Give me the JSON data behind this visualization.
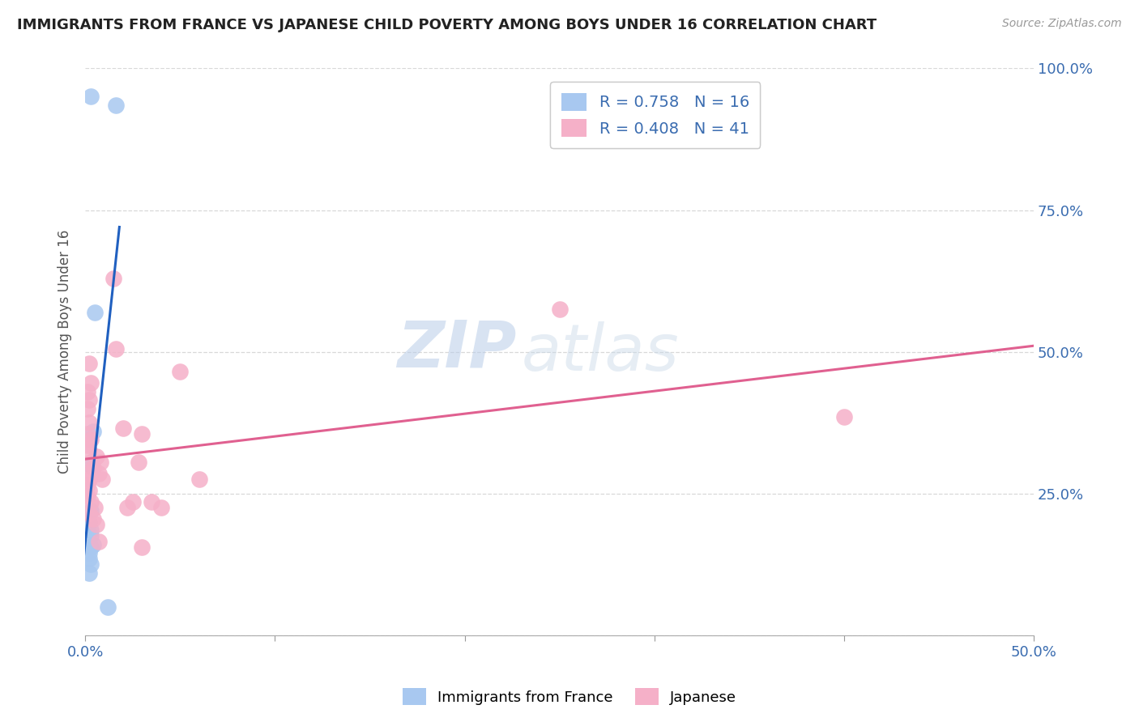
{
  "title": "IMMIGRANTS FROM FRANCE VS JAPANESE CHILD POVERTY AMONG BOYS UNDER 16 CORRELATION CHART",
  "source": "Source: ZipAtlas.com",
  "ylabel": "Child Poverty Among Boys Under 16",
  "xlim": [
    0.0,
    0.5
  ],
  "ylim": [
    0.0,
    1.0
  ],
  "france_color": "#a8c8f0",
  "japanese_color": "#f5b0c8",
  "france_line_color": "#2060c0",
  "japanese_line_color": "#e06090",
  "france_scatter": [
    [
      0.003,
      0.95
    ],
    [
      0.016,
      0.935
    ],
    [
      0.005,
      0.57
    ],
    [
      0.004,
      0.36
    ],
    [
      0.003,
      0.3
    ],
    [
      0.003,
      0.22
    ],
    [
      0.002,
      0.2
    ],
    [
      0.003,
      0.185
    ],
    [
      0.003,
      0.175
    ],
    [
      0.004,
      0.16
    ],
    [
      0.003,
      0.155
    ],
    [
      0.002,
      0.145
    ],
    [
      0.002,
      0.135
    ],
    [
      0.003,
      0.125
    ],
    [
      0.002,
      0.11
    ],
    [
      0.012,
      0.05
    ]
  ],
  "japanese_scatter": [
    [
      0.002,
      0.48
    ],
    [
      0.003,
      0.445
    ],
    [
      0.001,
      0.43
    ],
    [
      0.002,
      0.415
    ],
    [
      0.001,
      0.4
    ],
    [
      0.002,
      0.375
    ],
    [
      0.001,
      0.355
    ],
    [
      0.003,
      0.345
    ],
    [
      0.001,
      0.335
    ],
    [
      0.002,
      0.325
    ],
    [
      0.003,
      0.305
    ],
    [
      0.004,
      0.295
    ],
    [
      0.003,
      0.285
    ],
    [
      0.002,
      0.275
    ],
    [
      0.001,
      0.265
    ],
    [
      0.002,
      0.255
    ],
    [
      0.001,
      0.245
    ],
    [
      0.003,
      0.235
    ],
    [
      0.005,
      0.225
    ],
    [
      0.002,
      0.215
    ],
    [
      0.004,
      0.205
    ],
    [
      0.006,
      0.315
    ],
    [
      0.007,
      0.285
    ],
    [
      0.008,
      0.305
    ],
    [
      0.006,
      0.195
    ],
    [
      0.007,
      0.165
    ],
    [
      0.009,
      0.275
    ],
    [
      0.015,
      0.63
    ],
    [
      0.016,
      0.505
    ],
    [
      0.02,
      0.365
    ],
    [
      0.025,
      0.235
    ],
    [
      0.022,
      0.225
    ],
    [
      0.028,
      0.305
    ],
    [
      0.03,
      0.355
    ],
    [
      0.03,
      0.155
    ],
    [
      0.035,
      0.235
    ],
    [
      0.04,
      0.225
    ],
    [
      0.05,
      0.465
    ],
    [
      0.06,
      0.275
    ],
    [
      0.25,
      0.575
    ],
    [
      0.4,
      0.385
    ]
  ],
  "watermark_zip": "ZIP",
  "watermark_atlas": "atlas",
  "background_color": "#ffffff",
  "grid_color": "#d8d8d8",
  "legend_R1": "R = 0.758",
  "legend_N1": "N = 16",
  "legend_R2": "R = 0.408",
  "legend_N2": "N = 41"
}
